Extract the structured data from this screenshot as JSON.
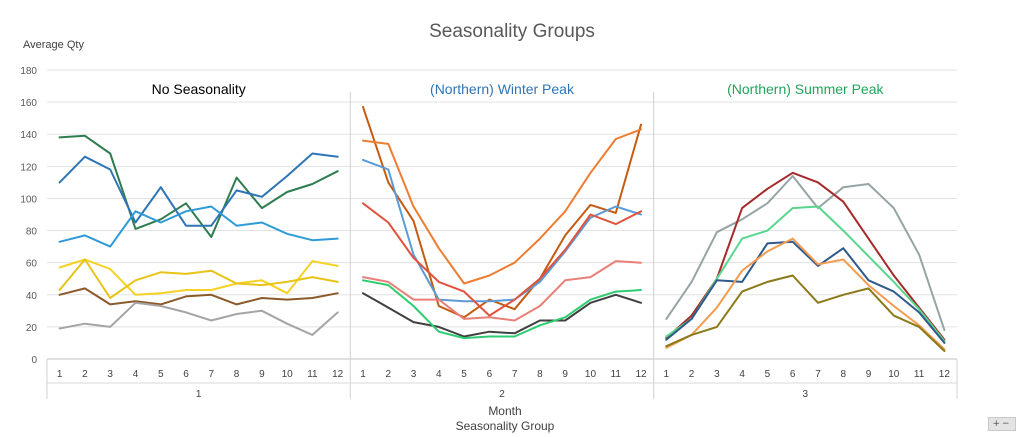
{
  "chart_data": {
    "type": "line",
    "title": "Seasonality Groups",
    "ylabel": "Average Qty",
    "xlabel_outer": "Month",
    "xlabel_group": "Seasonality Group",
    "ylim": [
      0,
      180
    ],
    "yticks": [
      0,
      20,
      40,
      60,
      80,
      100,
      120,
      140,
      160,
      180
    ],
    "grid": true,
    "months": [
      "1",
      "2",
      "3",
      "4",
      "5",
      "6",
      "7",
      "8",
      "9",
      "10",
      "11",
      "12"
    ],
    "groups": [
      {
        "group_label": "1",
        "panel_title": "No Seasonality",
        "title_color": "#000000",
        "series": [
          {
            "color": "#2E7D4F",
            "values": [
              138,
              139,
              128,
              81,
              87,
              97,
              76,
              113,
              94,
              104,
              109,
              117
            ]
          },
          {
            "color": "#2E75B6",
            "values": [
              110,
              126,
              118,
              85,
              107,
              83,
              83,
              105,
              101,
              114,
              128,
              126
            ]
          },
          {
            "color": "#2E9BD6",
            "values": [
              73,
              77,
              70,
              92,
              85,
              92,
              95,
              83,
              85,
              78,
              74,
              75
            ]
          },
          {
            "color": "#F5D224",
            "values": [
              57,
              62,
              56,
              40,
              41,
              43,
              43,
              47,
              49,
              41,
              61,
              58
            ]
          },
          {
            "color": "#E8C318",
            "values": [
              43,
              62,
              38,
              49,
              54,
              53,
              55,
              47,
              46,
              48,
              51,
              48
            ]
          },
          {
            "color": "#8B5A2B",
            "values": [
              40,
              44,
              34,
              36,
              34,
              39,
              40,
              34,
              38,
              37,
              38,
              41
            ]
          },
          {
            "color": "#A5A5A5",
            "values": [
              19,
              22,
              20,
              35,
              33,
              29,
              24,
              28,
              30,
              22,
              15,
              29
            ]
          }
        ]
      },
      {
        "group_label": "2",
        "panel_title": "(Northern) Winter Peak",
        "title_color": "#2E75B6",
        "series": [
          {
            "color": "#C55A11",
            "values": [
              157,
              110,
              86,
              33,
              26,
              37,
              31,
              50,
              77,
              96,
              91,
              146
            ]
          },
          {
            "color": "#ED7D31",
            "values": [
              136,
              134,
              95,
              69,
              47,
              52,
              60,
              75,
              92,
              116,
              137,
              143
            ]
          },
          {
            "color": "#5B9BD5",
            "values": [
              124,
              118,
              65,
              37,
              36,
              36,
              37,
              48,
              67,
              88,
              95,
              90
            ]
          },
          {
            "color": "#E0533E",
            "values": [
              97,
              85,
              63,
              48,
              42,
              27,
              37,
              50,
              68,
              90,
              84,
              92
            ]
          },
          {
            "color": "#E98078",
            "values": [
              51,
              48,
              37,
              37,
              25,
              26,
              24,
              33,
              49,
              51,
              61,
              60
            ]
          },
          {
            "color": "#404040",
            "values": [
              41,
              32,
              23,
              20,
              14,
              17,
              16,
              24,
              24,
              35,
              40,
              35
            ]
          },
          {
            "color": "#2ECC71",
            "values": [
              49,
              46,
              33,
              17,
              13,
              14,
              14,
              21,
              26,
              37,
              42,
              43
            ]
          }
        ]
      },
      {
        "group_label": "3",
        "panel_title": "(Northern) Summer Peak",
        "title_color": "#1FA55B",
        "series": [
          {
            "color": "#95A5A6",
            "values": [
              25,
              48,
              79,
              87,
              97,
              114,
              94,
              107,
              109,
              94,
              65,
              18
            ]
          },
          {
            "color": "#A52A2A",
            "values": [
              13,
              27,
              50,
              94,
              106,
              116,
              110,
              98,
              75,
              52,
              32,
              12
            ]
          },
          {
            "color": "#58D68D",
            "values": [
              14,
              25,
              50,
              75,
              80,
              94,
              95,
              80,
              64,
              48,
              31,
              11
            ]
          },
          {
            "color": "#2E5B8A",
            "values": [
              12,
              25,
              49,
              48,
              72,
              73,
              58,
              69,
              49,
              42,
              29,
              10
            ]
          },
          {
            "color": "#F39C50",
            "values": [
              7,
              15,
              32,
              55,
              67,
              75,
              59,
              62,
              46,
              33,
              21,
              6
            ]
          },
          {
            "color": "#8B7A1A",
            "values": [
              8,
              15,
              20,
              42,
              48,
              52,
              35,
              40,
              44,
              27,
              20,
              5
            ]
          }
        ]
      }
    ]
  }
}
